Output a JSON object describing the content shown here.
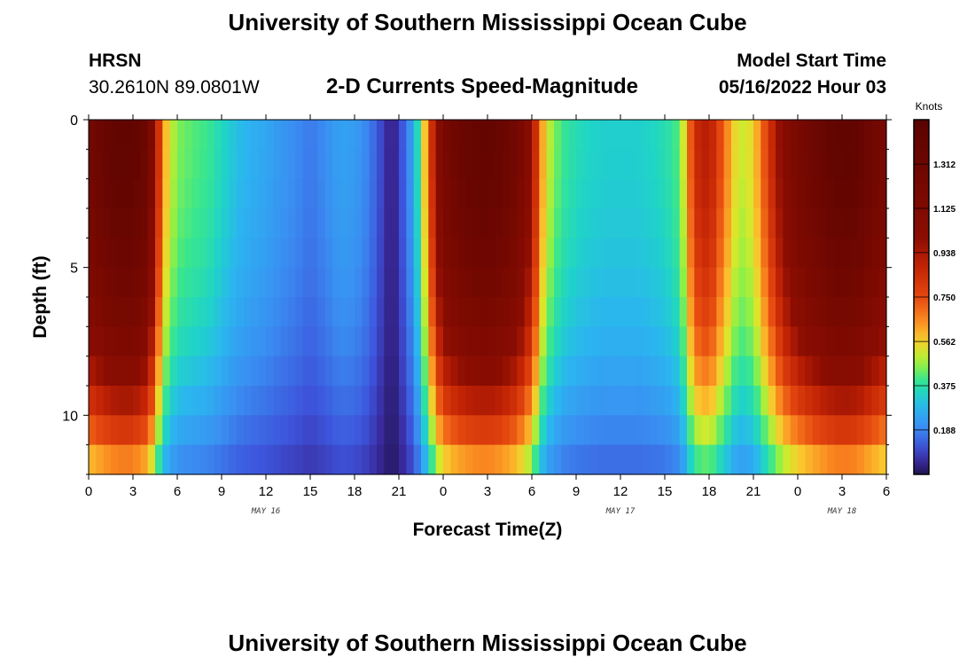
{
  "header": {
    "title": "University of Southern Mississippi Ocean Cube",
    "station": "HRSN",
    "coords": "30.2610N  89.0801W",
    "subtitle": "2-D Currents Speed-Magnitude",
    "start_label": "Model Start Time",
    "start_value": "05/16/2022 Hour 03"
  },
  "footer": {
    "title": "University of Southern Mississippi Ocean Cube"
  },
  "chart_data": {
    "type": "heatmap",
    "title": "2-D Currents Speed-Magnitude",
    "xlabel": "Forecast Time(Z)",
    "ylabel": "Depth (ft)",
    "x_range_hours": [
      0,
      54
    ],
    "x_tick_labels": [
      "0",
      "3",
      "6",
      "9",
      "12",
      "15",
      "18",
      "21",
      "0",
      "3",
      "6",
      "9",
      "12",
      "15",
      "18",
      "21",
      "0",
      "3",
      "6"
    ],
    "date_labels": [
      {
        "label": "MAY 16",
        "hour": 12
      },
      {
        "label": "MAY 17",
        "hour": 36
      },
      {
        "label": "MAY 18",
        "hour": 51
      }
    ],
    "y_range": [
      0,
      12
    ],
    "y_tick_labels": [
      "0",
      "5",
      "10"
    ],
    "y_ticks": [
      0,
      5,
      10
    ],
    "depths": [
      0,
      1,
      2,
      3,
      4,
      5,
      6,
      7,
      8,
      9,
      10,
      11,
      12
    ],
    "colorbar": {
      "unit": "Knots",
      "min": 0,
      "max": 1.5,
      "ticks": [
        1.312,
        1.125,
        0.938,
        0.75,
        0.562,
        0.375,
        0.188
      ],
      "tick_labels": [
        "1.312",
        "1.125",
        "0.938",
        "0.750",
        "0.562",
        "0.375",
        "0.188"
      ]
    },
    "surface_speed_profile": [
      {
        "hour": 0,
        "value": 1.25
      },
      {
        "hour": 1,
        "value": 1.35
      },
      {
        "hour": 2,
        "value": 1.42
      },
      {
        "hour": 3,
        "value": 1.42
      },
      {
        "hour": 4,
        "value": 1.3
      },
      {
        "hour": 4.5,
        "value": 1.0
      },
      {
        "hour": 5,
        "value": 0.65
      },
      {
        "hour": 5.5,
        "value": 0.52
      },
      {
        "hour": 6,
        "value": 0.45
      },
      {
        "hour": 7,
        "value": 0.42
      },
      {
        "hour": 8,
        "value": 0.4
      },
      {
        "hour": 9,
        "value": 0.35
      },
      {
        "hour": 10,
        "value": 0.3
      },
      {
        "hour": 11,
        "value": 0.27
      },
      {
        "hour": 12,
        "value": 0.25
      },
      {
        "hour": 13,
        "value": 0.22
      },
      {
        "hour": 14,
        "value": 0.2
      },
      {
        "hour": 15,
        "value": 0.17
      },
      {
        "hour": 16,
        "value": 0.2
      },
      {
        "hour": 17,
        "value": 0.24
      },
      {
        "hour": 18,
        "value": 0.23
      },
      {
        "hour": 19,
        "value": 0.18
      },
      {
        "hour": 20,
        "value": 0.08
      },
      {
        "hour": 20.5,
        "value": 0.03
      },
      {
        "hour": 21,
        "value": 0.08
      },
      {
        "hour": 22,
        "value": 0.25
      },
      {
        "hour": 22.5,
        "value": 0.45
      },
      {
        "hour": 23,
        "value": 0.7
      },
      {
        "hour": 23.5,
        "value": 1.0
      },
      {
        "hour": 24,
        "value": 1.2
      },
      {
        "hour": 25,
        "value": 1.32
      },
      {
        "hour": 26,
        "value": 1.38
      },
      {
        "hour": 27,
        "value": 1.4
      },
      {
        "hour": 28,
        "value": 1.35
      },
      {
        "hour": 29,
        "value": 1.25
      },
      {
        "hour": 30,
        "value": 1.0
      },
      {
        "hour": 30.5,
        "value": 0.7
      },
      {
        "hour": 31,
        "value": 0.52
      },
      {
        "hour": 32,
        "value": 0.4
      },
      {
        "hour": 33,
        "value": 0.36
      },
      {
        "hour": 34,
        "value": 0.34
      },
      {
        "hour": 35,
        "value": 0.33
      },
      {
        "hour": 36,
        "value": 0.33
      },
      {
        "hour": 37,
        "value": 0.33
      },
      {
        "hour": 38,
        "value": 0.34
      },
      {
        "hour": 39,
        "value": 0.36
      },
      {
        "hour": 40,
        "value": 0.42
      },
      {
        "hour": 40.5,
        "value": 0.6
      },
      {
        "hour": 41,
        "value": 0.85
      },
      {
        "hour": 42,
        "value": 0.92
      },
      {
        "hour": 43,
        "value": 0.7
      },
      {
        "hour": 44,
        "value": 0.5
      },
      {
        "hour": 45,
        "value": 0.55
      },
      {
        "hour": 46,
        "value": 0.8
      },
      {
        "hour": 47,
        "value": 1.05
      },
      {
        "hour": 48,
        "value": 1.2
      },
      {
        "hour": 49,
        "value": 1.3
      },
      {
        "hour": 50,
        "value": 1.38
      },
      {
        "hour": 51,
        "value": 1.43
      },
      {
        "hour": 52,
        "value": 1.4
      },
      {
        "hour": 53,
        "value": 1.3
      },
      {
        "hour": 54,
        "value": 1.2
      }
    ],
    "depth_decay": [
      1.0,
      1.0,
      0.99,
      0.97,
      0.95,
      0.92,
      0.88,
      0.84,
      0.78,
      0.7,
      0.62,
      0.52,
      0.42
    ],
    "colormap": [
      {
        "v": 0.0,
        "color": "#1f1550"
      },
      {
        "v": 0.06,
        "color": "#3a2a9e"
      },
      {
        "v": 0.12,
        "color": "#3d55dc"
      },
      {
        "v": 0.2,
        "color": "#3a8ef2"
      },
      {
        "v": 0.28,
        "color": "#2bb5f0"
      },
      {
        "v": 0.34,
        "color": "#1fd4c7"
      },
      {
        "v": 0.4,
        "color": "#39e68e"
      },
      {
        "v": 0.46,
        "color": "#8ef046"
      },
      {
        "v": 0.52,
        "color": "#d8e92a"
      },
      {
        "v": 0.58,
        "color": "#fbc32d"
      },
      {
        "v": 0.66,
        "color": "#f9831f"
      },
      {
        "v": 0.75,
        "color": "#e5480f"
      },
      {
        "v": 0.88,
        "color": "#c22305"
      },
      {
        "v": 1.0,
        "color": "#8c0d02"
      },
      {
        "v": 1.5,
        "color": "#5a0300"
      }
    ]
  }
}
